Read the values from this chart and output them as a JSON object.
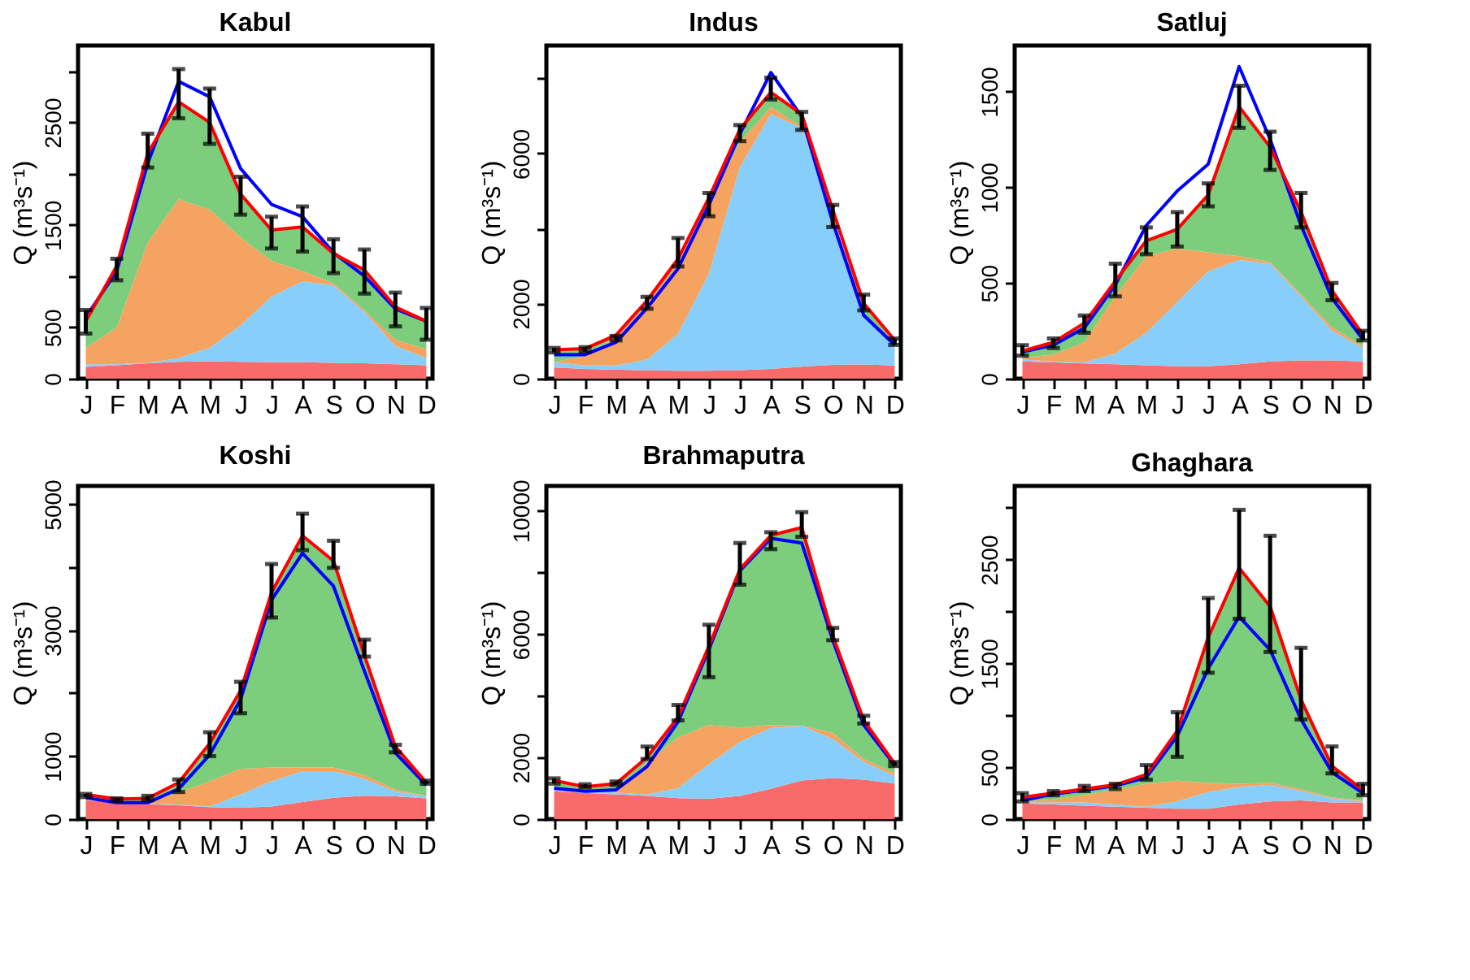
{
  "chart_data": [
    {
      "type": "area",
      "stacked": true,
      "title": "Kabul",
      "ylabel": "Q (m³s⁻¹)",
      "grid": false,
      "categories": [
        "J",
        "F",
        "M",
        "A",
        "M",
        "J",
        "J",
        "A",
        "S",
        "O",
        "N",
        "D"
      ],
      "ylim": [
        0,
        3250
      ],
      "yticks": [
        0,
        500,
        {
          "value": 1000,
          "label": null
        },
        1500,
        {
          "value": 2000,
          "label": null
        },
        2500,
        {
          "value": 3000,
          "label": null
        }
      ],
      "series": [
        {
          "color": "#f96a6a",
          "values": [
            115,
            130,
            150,
            165,
            170,
            165,
            160,
            160,
            155,
            150,
            140,
            130
          ]
        },
        {
          "color": "#87cefa",
          "values": [
            25,
            10,
            5,
            35,
            130,
            355,
            640,
            790,
            755,
            500,
            180,
            70
          ]
        },
        {
          "color": "#f4a460",
          "values": [
            160,
            360,
            1175,
            1550,
            1350,
            860,
            350,
            100,
            20,
            20,
            60,
            90
          ]
        },
        {
          "color": "#7ccd7c",
          "values": [
            260,
            600,
            870,
            950,
            850,
            420,
            300,
            430,
            290,
            390,
            320,
            270
          ]
        },
        {
          "type": "line",
          "color": "#0000ff",
          "values": [
            600,
            1050,
            2100,
            2900,
            2750,
            2050,
            1700,
            1580,
            1230,
            1000,
            680,
            560
          ]
        },
        {
          "type": "line",
          "color": "#ff0000",
          "values": [
            560,
            1100,
            2200,
            2700,
            2500,
            1800,
            1450,
            1480,
            1220,
            1060,
            700,
            560
          ],
          "errors": [
            [
              440,
              670
            ],
            [
              960,
              1170
            ],
            [
              2060,
              2390
            ],
            [
              2540,
              3020
            ],
            [
              2290,
              2830
            ],
            [
              1600,
              1970
            ],
            [
              1270,
              1580
            ],
            [
              1240,
              1680
            ],
            [
              1030,
              1360
            ],
            [
              830,
              1260
            ],
            [
              510,
              840
            ],
            [
              380,
              690
            ]
          ]
        }
      ]
    },
    {
      "type": "area",
      "stacked": true,
      "title": "Indus",
      "ylabel": "Q (m³s⁻¹)",
      "grid": false,
      "categories": [
        "J",
        "F",
        "M",
        "A",
        "M",
        "J",
        "J",
        "A",
        "S",
        "O",
        "N",
        "D"
      ],
      "ylim": [
        0,
        8880
      ],
      "yticks": [
        0,
        2000,
        {
          "value": 4000,
          "label": null
        },
        6000,
        {
          "value": 8000,
          "label": null
        }
      ],
      "series": [
        {
          "color": "#f96a6a",
          "values": [
            300,
            260,
            240,
            220,
            210,
            210,
            230,
            260,
            320,
            370,
            380,
            350
          ]
        },
        {
          "color": "#87cefa",
          "values": [
            140,
            90,
            110,
            290,
            980,
            2590,
            5400,
            6790,
            6360,
            4060,
            1310,
            500
          ]
        },
        {
          "color": "#f4a460",
          "values": [
            10,
            250,
            750,
            1490,
            1910,
            1900,
            670,
            190,
            40,
            20,
            10,
            20
          ]
        },
        {
          "color": "#7ccd7c",
          "values": [
            320,
            200,
            60,
            80,
            90,
            120,
            350,
            390,
            330,
            50,
            310,
            160
          ]
        },
        {
          "type": "line",
          "color": "#0000ff",
          "values": [
            640,
            640,
            970,
            1880,
            2930,
            4630,
            6520,
            8160,
            6980,
            4170,
            1690,
            900
          ]
        },
        {
          "type": "line",
          "color": "#ff0000",
          "values": [
            770,
            800,
            1160,
            2080,
            3190,
            4820,
            6650,
            7630,
            7050,
            4500,
            2010,
            1030
          ],
          "errors": [
            [
              700,
              820
            ],
            [
              720,
              840
            ],
            [
              1020,
              1140
            ],
            [
              1860,
              2180
            ],
            [
              2990,
              3750
            ],
            [
              4330,
              4950
            ],
            [
              6330,
              6760
            ],
            [
              7440,
              8020
            ],
            [
              6630,
              7110
            ],
            [
              4040,
              4630
            ],
            [
              1820,
              2240
            ],
            [
              900,
              1070
            ]
          ]
        }
      ]
    },
    {
      "type": "area",
      "stacked": true,
      "title": "Satluj",
      "ylabel": "Q (m³s⁻¹)",
      "grid": false,
      "categories": [
        "J",
        "F",
        "M",
        "A",
        "M",
        "J",
        "J",
        "A",
        "S",
        "O",
        "N",
        "D"
      ],
      "ylim": [
        0,
        1740
      ],
      "yticks": [
        0,
        500,
        1000,
        1500
      ],
      "series": [
        {
          "color": "#f96a6a",
          "values": [
            90,
            85,
            80,
            75,
            70,
            65,
            65,
            75,
            90,
            95,
            95,
            90
          ]
        },
        {
          "color": "#87cefa",
          "values": [
            10,
            5,
            5,
            55,
            170,
            335,
            495,
            545,
            510,
            335,
            155,
            70
          ]
        },
        {
          "color": "#f4a460",
          "values": [
            10,
            35,
            105,
            300,
            400,
            280,
            100,
            20,
            10,
            10,
            20,
            10
          ]
        },
        {
          "color": "#7ccd7c",
          "values": [
            35,
            65,
            100,
            80,
            80,
            100,
            300,
            780,
            600,
            430,
            190,
            60
          ]
        },
        {
          "type": "line",
          "color": "#0000ff",
          "values": [
            140,
            175,
            265,
            490,
            800,
            980,
            1120,
            1630,
            1250,
            800,
            420,
            205
          ]
        },
        {
          "type": "line",
          "color": "#ff0000",
          "values": [
            145,
            190,
            290,
            510,
            720,
            780,
            960,
            1420,
            1210,
            870,
            460,
            230
          ],
          "errors": [
            [
              120,
              175
            ],
            [
              160,
              210
            ],
            [
              240,
              330
            ],
            [
              430,
              600
            ],
            [
              650,
              790
            ],
            [
              690,
              870
            ],
            [
              900,
              1020
            ],
            [
              1310,
              1530
            ],
            [
              1090,
              1290
            ],
            [
              790,
              970
            ],
            [
              410,
              500
            ],
            [
              200,
              250
            ]
          ]
        }
      ]
    },
    {
      "type": "area",
      "stacked": true,
      "title": "Koshi",
      "ylabel": "Q (m³s⁻¹)",
      "grid": false,
      "categories": [
        "J",
        "F",
        "M",
        "A",
        "M",
        "J",
        "J",
        "A",
        "S",
        "O",
        "N",
        "D"
      ],
      "ylim": [
        0,
        5290
      ],
      "yticks": [
        0,
        1000,
        {
          "value": 2000,
          "label": null
        },
        3000,
        {
          "value": 4000,
          "label": null
        },
        5000
      ],
      "series": [
        {
          "color": "#f96a6a",
          "values": [
            300,
            260,
            240,
            220,
            190,
            180,
            200,
            270,
            340,
            370,
            360,
            330
          ]
        },
        {
          "color": "#87cefa",
          "values": [
            10,
            10,
            10,
            10,
            10,
            210,
            400,
            490,
            420,
            270,
            80,
            30
          ]
        },
        {
          "color": "#f4a460",
          "values": [
            10,
            10,
            20,
            190,
            400,
            410,
            220,
            60,
            60,
            60,
            30,
            10
          ]
        },
        {
          "color": "#7ccd7c",
          "values": [
            70,
            40,
            60,
            160,
            600,
            1240,
            2780,
            3680,
            3280,
            1900,
            680,
            210
          ]
        },
        {
          "type": "line",
          "color": "#0000ff",
          "values": [
            340,
            260,
            260,
            480,
            1020,
            1900,
            3480,
            4220,
            3700,
            2350,
            1050,
            540
          ]
        },
        {
          "type": "line",
          "color": "#ff0000",
          "values": [
            390,
            320,
            330,
            580,
            1200,
            2040,
            3600,
            4500,
            4100,
            2600,
            1150,
            580
          ],
          "errors": [
            [
              350,
              400
            ],
            [
              290,
              330
            ],
            [
              300,
              370
            ],
            [
              430,
              630
            ],
            [
              1000,
              1380
            ],
            [
              1680,
              2180
            ],
            [
              3200,
              4050
            ],
            [
              4270,
              4850
            ],
            [
              3990,
              4420
            ],
            [
              2580,
              2850
            ],
            [
              1060,
              1180
            ],
            [
              560,
              610
            ]
          ]
        }
      ]
    },
    {
      "type": "area",
      "stacked": true,
      "title": "Brahmaputra",
      "ylabel": "Q (m³s⁻¹)",
      "grid": false,
      "categories": [
        "J",
        "F",
        "M",
        "A",
        "M",
        "J",
        "J",
        "A",
        "S",
        "O",
        "N",
        "D"
      ],
      "ylim": [
        0,
        10800
      ],
      "yticks": [
        0,
        2000,
        {
          "value": 4000,
          "label": null
        },
        6000,
        {
          "value": 8000,
          "label": null
        },
        10000
      ],
      "series": [
        {
          "color": "#f96a6a",
          "values": [
            900,
            850,
            800,
            750,
            680,
            660,
            750,
            980,
            1250,
            1330,
            1280,
            1150
          ]
        },
        {
          "color": "#87cefa",
          "values": [
            50,
            50,
            60,
            50,
            320,
            1120,
            1750,
            1970,
            1780,
            1270,
            570,
            250
          ]
        },
        {
          "color": "#f4a460",
          "values": [
            10,
            20,
            20,
            1040,
            1650,
            1270,
            470,
            100,
            0,
            200,
            100,
            100
          ]
        },
        {
          "color": "#7ccd7c",
          "values": [
            290,
            130,
            270,
            160,
            650,
            2550,
            5130,
            6150,
            6420,
            3150,
            1250,
            300
          ]
        },
        {
          "type": "line",
          "color": "#0000ff",
          "values": [
            1000,
            900,
            950,
            1700,
            3150,
            5500,
            8050,
            9100,
            8950,
            5800,
            3050,
            1750
          ]
        },
        {
          "type": "line",
          "color": "#ff0000",
          "values": [
            1250,
            1050,
            1150,
            2000,
            3300,
            5600,
            8100,
            9200,
            9450,
            5950,
            3200,
            1800
          ],
          "errors": [
            [
              1150,
              1320
            ],
            [
              1030,
              1130
            ],
            [
              1110,
              1220
            ],
            [
              1950,
              2350
            ],
            [
              3200,
              3700
            ],
            [
              4600,
              6300
            ],
            [
              7600,
              8950
            ],
            [
              8750,
              9300
            ],
            [
              9150,
              9950
            ],
            [
              5800,
              6200
            ],
            [
              3100,
              3350
            ],
            [
              1720,
              1850
            ]
          ]
        }
      ]
    },
    {
      "type": "area",
      "stacked": true,
      "title": "Ghaghara",
      "ylabel": "Q (m³s⁻¹)",
      "grid": false,
      "categories": [
        "J",
        "F",
        "M",
        "A",
        "M",
        "J",
        "J",
        "A",
        "S",
        "O",
        "N",
        "D"
      ],
      "ylim": [
        0,
        3210
      ],
      "yticks": [
        0,
        500,
        {
          "value": 1000,
          "label": null
        },
        1500,
        {
          "value": 2000,
          "label": null
        },
        2500,
        {
          "value": 3000,
          "label": null
        }
      ],
      "series": [
        {
          "color": "#f96a6a",
          "values": [
            150,
            140,
            130,
            120,
            110,
            100,
            100,
            140,
            170,
            180,
            160,
            160
          ]
        },
        {
          "color": "#87cefa",
          "values": [
            10,
            20,
            30,
            20,
            10,
            70,
            160,
            170,
            160,
            90,
            40,
            10
          ]
        },
        {
          "color": "#f4a460",
          "values": [
            10,
            30,
            70,
            140,
            220,
            200,
            90,
            30,
            20,
            20,
            10,
            10
          ]
        },
        {
          "color": "#7ccd7c",
          "values": [
            40,
            60,
            60,
            50,
            90,
            480,
            1400,
            2080,
            1700,
            860,
            300,
            100
          ]
        },
        {
          "type": "line",
          "color": "#0000ff",
          "values": [
            180,
            240,
            280,
            320,
            400,
            800,
            1450,
            1950,
            1630,
            960,
            450,
            250
          ]
        },
        {
          "type": "line",
          "color": "#ff0000",
          "values": [
            210,
            250,
            290,
            330,
            430,
            850,
            1750,
            2420,
            2050,
            1150,
            510,
            280
          ],
          "errors": [
            [
              170,
              250
            ],
            [
              230,
              270
            ],
            [
              270,
              320
            ],
            [
              290,
              340
            ],
            [
              380,
              520
            ],
            [
              600,
              1030
            ],
            [
              1410,
              2130
            ],
            [
              1930,
              2980
            ],
            [
              1610,
              2730
            ],
            [
              960,
              1650
            ],
            [
              440,
              700
            ],
            [
              230,
              340
            ]
          ]
        }
      ]
    }
  ]
}
